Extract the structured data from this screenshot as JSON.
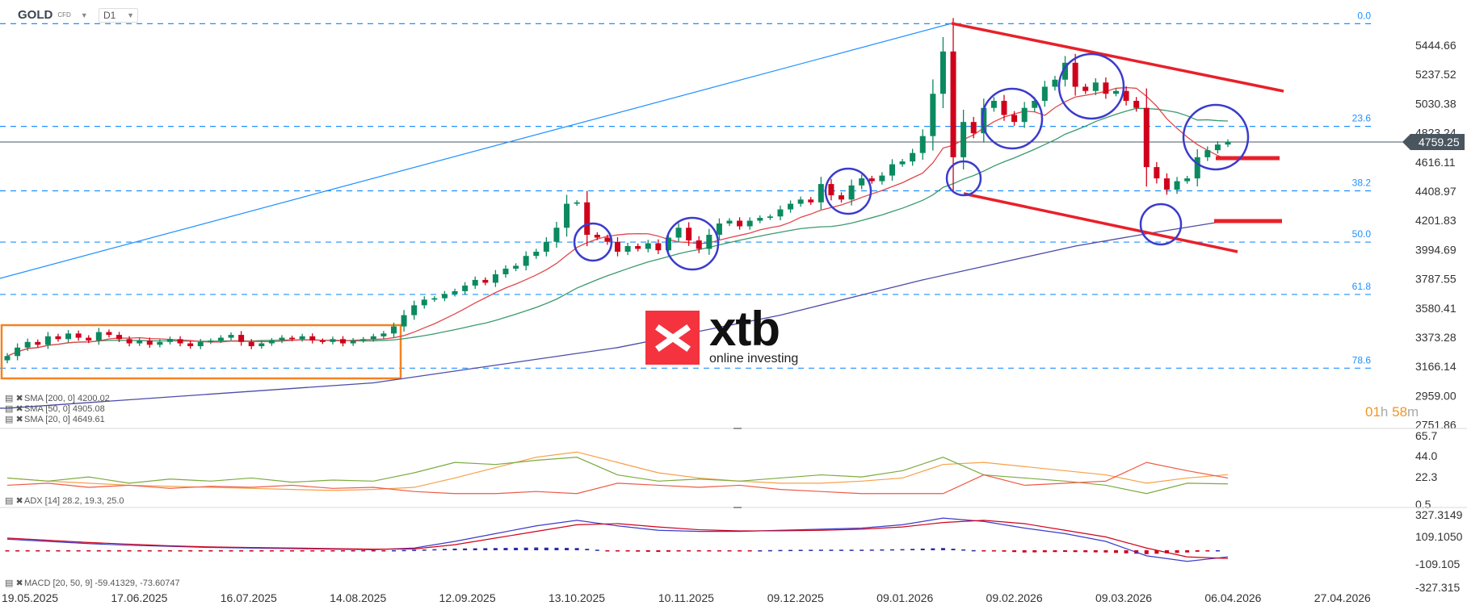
{
  "header": {
    "symbol": "GOLD",
    "instrument_type": "CFD",
    "timeframe": "D1"
  },
  "logo": {
    "main": "xtb",
    "sub": "online investing",
    "color": "#f4333f"
  },
  "countdown": {
    "hours": "01",
    "h_unit": "h",
    "minutes": "58",
    "m_unit": "m"
  },
  "current_price_tag": "4759.25",
  "legends": {
    "sma200": "SMA [200, 0] 4200.02",
    "sma50": "SMA [50, 0] 4905.08",
    "sma20": "SMA [20, 0] 4649.61",
    "adx": "ADX [14] 28.2, 19.3, 25.0",
    "macd": "MACD [20, 50, 9] -59.41329, -73.60747"
  },
  "chart_data": [
    {
      "type": "candlestick",
      "price_axis_ticks": [
        "5444.66",
        "5237.52",
        "5030.38",
        "4823.24",
        "4616.11",
        "4408.97",
        "4201.83",
        "3994.69",
        "3787.55",
        "3580.41",
        "3373.28",
        "3166.14",
        "2959.00",
        "2751.86"
      ],
      "ylim": [
        2751.86,
        5444.66
      ],
      "date_ticks": [
        "19.05.2025",
        "17.06.2025",
        "16.07.2025",
        "14.08.2025",
        "12.09.2025",
        "13.10.2025",
        "10.11.2025",
        "09.12.2025",
        "09.01.2026",
        "09.02.2026",
        "09.03.2026",
        "06.04.2026",
        "27.04.2026"
      ],
      "last_price": 4759.25,
      "closes": [
        3240,
        3300,
        3340,
        3320,
        3380,
        3360,
        3400,
        3370,
        3350,
        3410,
        3390,
        3360,
        3330,
        3350,
        3320,
        3340,
        3360,
        3330,
        3310,
        3340,
        3350,
        3370,
        3390,
        3340,
        3310,
        3330,
        3350,
        3370,
        3360,
        3380,
        3350,
        3340,
        3360,
        3330,
        3350,
        3360,
        3380,
        3400,
        3450,
        3530,
        3600,
        3640,
        3650,
        3680,
        3700,
        3740,
        3780,
        3760,
        3820,
        3860,
        3880,
        3950,
        3980,
        4050,
        4150,
        4320,
        4330,
        4100,
        4080,
        4050,
        3980,
        4020,
        4000,
        4040,
        3990,
        4080,
        4150,
        4060,
        4000,
        4100,
        4180,
        4200,
        4160,
        4200,
        4220,
        4230,
        4280,
        4320,
        4350,
        4330,
        4460,
        4380,
        4350,
        4450,
        4500,
        4480,
        4520,
        4600,
        4620,
        4680,
        4800,
        5100,
        5400,
        4650,
        4900,
        4820,
        5000,
        5050,
        4950,
        4900,
        5000,
        5050,
        5150,
        5200,
        5320,
        5150,
        5120,
        5180,
        5100,
        5120,
        5050,
        5000,
        4580,
        4500,
        4420,
        4480,
        4500,
        4650,
        4700,
        4740,
        4759.25
      ],
      "sma200_points": [
        [
          0,
          2870
        ],
        [
          36,
          3050
        ],
        [
          60,
          3300
        ],
        [
          76,
          3530
        ],
        [
          90,
          3780
        ],
        [
          105,
          4020
        ],
        [
          112,
          4107
        ],
        [
          120,
          4200
        ]
      ],
      "fibonacci": [
        {
          "label": "0.0",
          "price": 5597
        },
        {
          "label": "23.6",
          "price": 4869
        },
        {
          "label": "38.2",
          "price": 4412
        },
        {
          "label": "50.0",
          "price": 4048
        },
        {
          "label": "61.8",
          "price": 3677
        },
        {
          "label": "78.6",
          "price": 3154
        }
      ],
      "colors": {
        "up": "#0b8a5f",
        "down": "#d0021b",
        "sma20": "#e0474c",
        "sma50": "#3a9a6e",
        "sma200": "#4b4ba8",
        "fib": "#1e90ff",
        "annotation_circle": "#3b3bcc",
        "channel": "#e8202a",
        "range_box": "#f58220",
        "trendline": "#1e90ff"
      }
    },
    {
      "type": "line",
      "ylim": [
        0.5,
        65.7
      ],
      "ticks": [
        "65.7",
        "44.0",
        "22.3",
        "0.5"
      ],
      "series": [
        {
          "color": "#f7a048",
          "values": [
            25,
            22,
            20,
            18,
            17,
            16,
            15,
            14,
            13,
            14,
            16,
            25,
            35,
            45,
            50,
            40,
            30,
            25,
            22,
            20,
            20,
            22,
            25,
            38,
            40,
            36,
            32,
            28,
            20,
            25,
            28.2
          ]
        },
        {
          "color": "#7cab3e",
          "values": [
            25,
            22,
            26,
            20,
            24,
            22,
            25,
            21,
            23,
            22,
            30,
            40,
            38,
            42,
            45,
            28,
            22,
            24,
            22,
            25,
            28,
            26,
            32,
            45,
            28,
            25,
            22,
            18,
            10,
            20,
            19.3
          ]
        },
        {
          "color": "#ee5a45",
          "values": [
            18,
            20,
            16,
            18,
            15,
            17,
            16,
            18,
            15,
            16,
            12,
            10,
            10,
            12,
            10,
            20,
            18,
            16,
            18,
            14,
            12,
            10,
            10,
            10,
            28,
            18,
            20,
            22,
            40,
            32,
            25.0
          ]
        }
      ]
    },
    {
      "type": "line",
      "ylim": [
        -327.315,
        327.3149
      ],
      "ticks": [
        "327.3149",
        "109.1050",
        "-109.105",
        "-327.315"
      ],
      "series": [
        {
          "color": "#3b3bcc",
          "values": [
            100,
            80,
            60,
            45,
            35,
            25,
            20,
            15,
            10,
            5,
            20,
            80,
            150,
            220,
            270,
            220,
            180,
            170,
            170,
            180,
            190,
            200,
            230,
            290,
            260,
            200,
            150,
            80,
            -50,
            -100,
            -59.41
          ]
        },
        {
          "color": "#d0021b",
          "values": [
            110,
            90,
            70,
            55,
            40,
            30,
            25,
            20,
            15,
            10,
            12,
            50,
            110,
            170,
            230,
            240,
            210,
            185,
            175,
            175,
            180,
            190,
            210,
            250,
            270,
            240,
            180,
            120,
            20,
            -60,
            -73.61
          ]
        }
      ]
    }
  ]
}
